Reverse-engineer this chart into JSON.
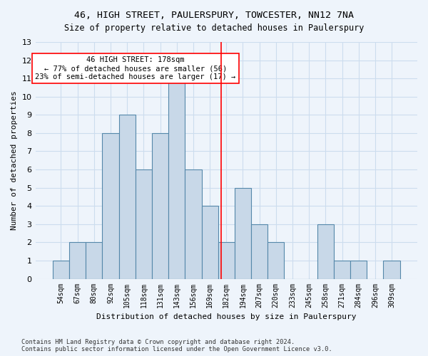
{
  "title_line1": "46, HIGH STREET, PAULERSPURY, TOWCESTER, NN12 7NA",
  "title_line2": "Size of property relative to detached houses in Paulerspury",
  "xlabel": "Distribution of detached houses by size in Paulerspury",
  "ylabel": "Number of detached properties",
  "footnote": "Contains HM Land Registry data © Crown copyright and database right 2024.\nContains public sector information licensed under the Open Government Licence v3.0.",
  "bin_labels": [
    "54sqm",
    "67sqm",
    "80sqm",
    "92sqm",
    "105sqm",
    "118sqm",
    "131sqm",
    "143sqm",
    "156sqm",
    "169sqm",
    "182sqm",
    "194sqm",
    "207sqm",
    "220sqm",
    "233sqm",
    "245sqm",
    "258sqm",
    "271sqm",
    "284sqm",
    "296sqm",
    "309sqm"
  ],
  "bar_heights": [
    1,
    2,
    2,
    8,
    9,
    6,
    8,
    11,
    6,
    4,
    2,
    5,
    3,
    2,
    0,
    0,
    3,
    1,
    1,
    0,
    1
  ],
  "bar_color": "#c8d8e8",
  "bar_edge_color": "#5588aa",
  "grid_color": "#ccddee",
  "background_color": "#eef4fb",
  "red_line_x": 9.7,
  "annotation_text": "46 HIGH STREET: 178sqm\n← 77% of detached houses are smaller (56)\n23% of semi-detached houses are larger (17) →",
  "annotation_box_color": "white",
  "annotation_box_edge": "red",
  "ylim": [
    0,
    13
  ],
  "yticks": [
    0,
    1,
    2,
    3,
    4,
    5,
    6,
    7,
    8,
    9,
    10,
    11,
    12,
    13
  ]
}
